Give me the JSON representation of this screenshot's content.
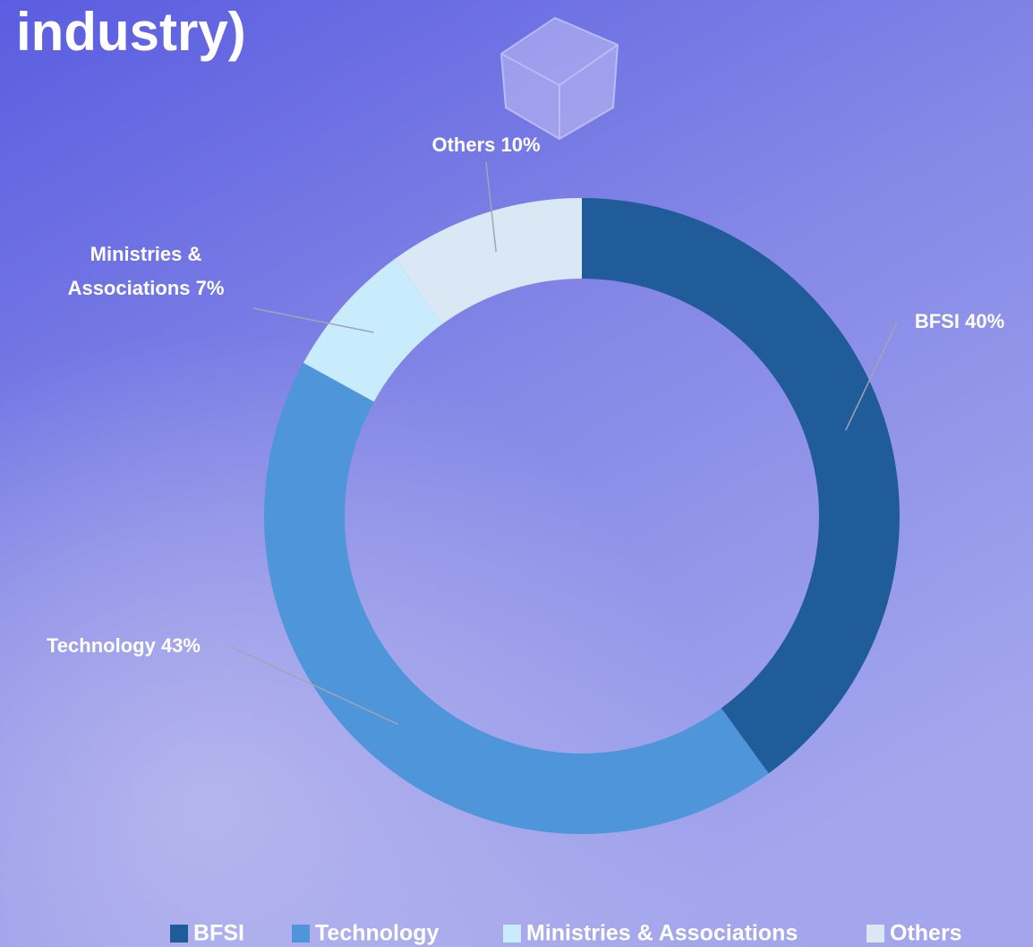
{
  "chart_data": {
    "type": "donut",
    "title": "industry)",
    "categories": [
      "BFSI",
      "Technology",
      "Ministries & Associations",
      "Others"
    ],
    "values": [
      40,
      43,
      7,
      10
    ],
    "value_labels": [
      "40%",
      "43%",
      "7%",
      "10%"
    ],
    "colors": [
      "#1f5c99",
      "#4e95d9",
      "#c8ecfb",
      "#dae8f6"
    ],
    "legend": "bottom"
  }
}
